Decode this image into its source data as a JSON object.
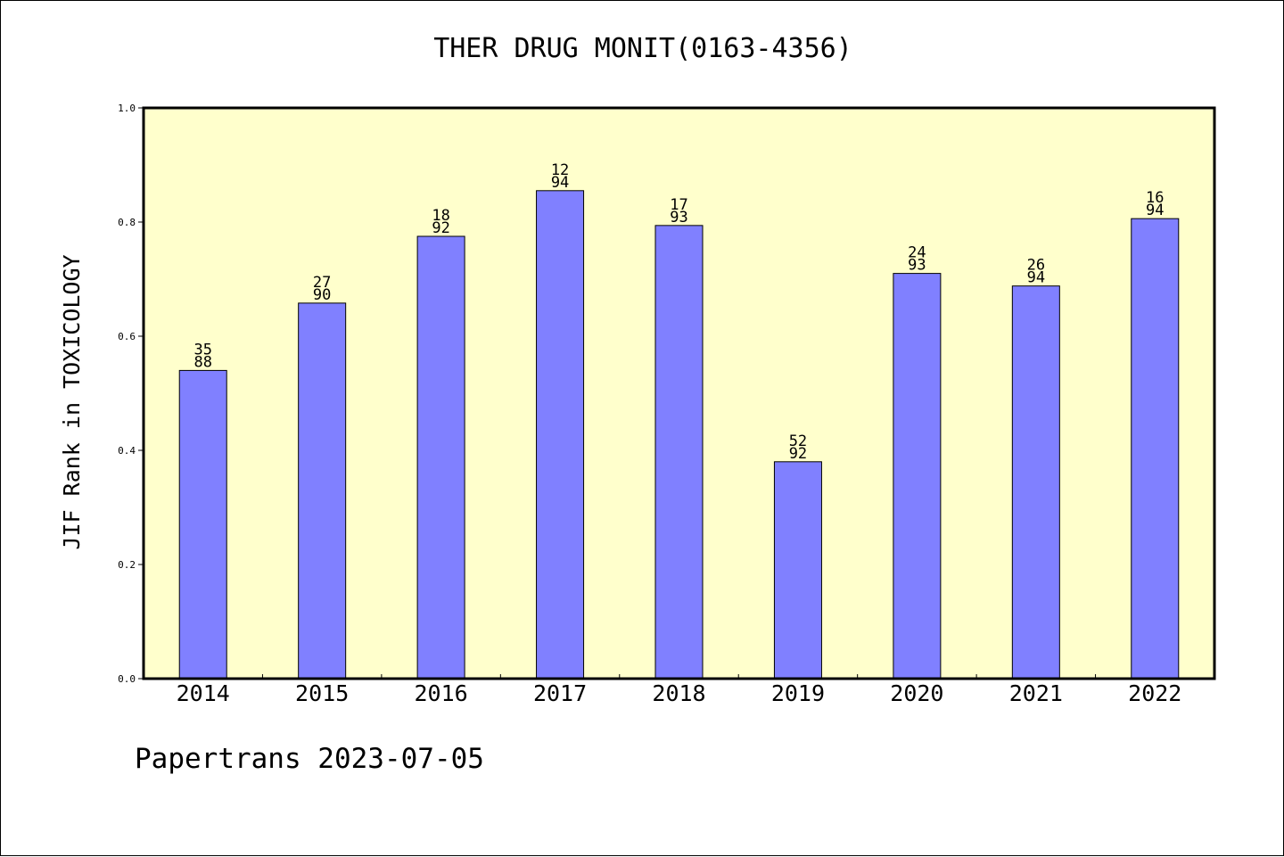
{
  "title": "THER DRUG MONIT(0163-4356)",
  "footer": "Papertrans 2023-07-05",
  "colors": {
    "plot_background": "#ffffcc",
    "bar_fill": "#8080ff",
    "bar_stroke": "#000000"
  },
  "chart_data": {
    "type": "bar",
    "title": "THER DRUG MONIT(0163-4356)",
    "xlabel": "",
    "ylabel": "JIF Rank in TOXICOLOGY",
    "ylim": [
      0,
      1.0
    ],
    "yticks": [
      "0.0",
      "0.2",
      "0.4",
      "0.6",
      "0.8",
      "1.0"
    ],
    "grid": false,
    "categories": [
      "2014",
      "2015",
      "2016",
      "2017",
      "2018",
      "2019",
      "2020",
      "2021",
      "2022"
    ],
    "values": [
      0.54,
      0.658,
      0.775,
      0.855,
      0.794,
      0.38,
      0.71,
      0.688,
      0.806
    ],
    "rank": [
      "35",
      "27",
      "18",
      "12",
      "17",
      "52",
      "24",
      "26",
      "16"
    ],
    "total": [
      "88",
      "90",
      "92",
      "94",
      "93",
      "92",
      "93",
      "94",
      "94"
    ]
  }
}
